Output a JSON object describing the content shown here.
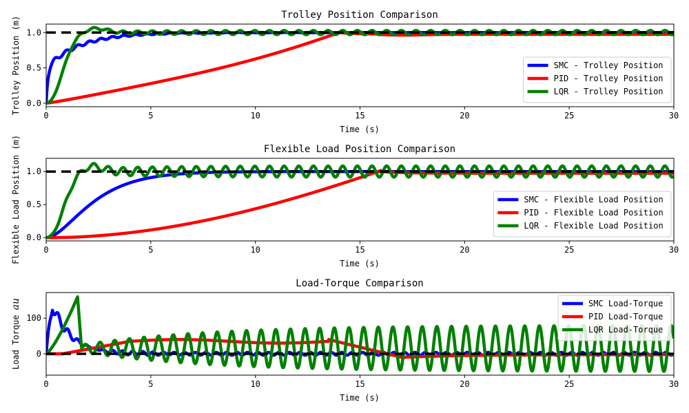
{
  "chart_data": [
    {
      "type": "line",
      "title": "Trolley Position Comparison",
      "xlabel": "Time (s)",
      "ylabel": "Trolley Position (m)",
      "xlim": [
        0,
        30
      ],
      "ylim": [
        -0.05,
        1.12
      ],
      "xticks": [
        0,
        5,
        10,
        15,
        20,
        25,
        30
      ],
      "xtick_labels": [
        "0",
        "5",
        "10",
        "15",
        "20",
        "25",
        "30"
      ],
      "yticks": [
        0.0,
        0.5,
        1.0
      ],
      "ytick_labels": [
        "0.0",
        "0.5",
        "1.0"
      ],
      "legend_position": "lower-right",
      "reference": {
        "name": "Reference",
        "value": 1.0,
        "color": "#000000",
        "style": "dashed"
      },
      "series": [
        {
          "name": "SMC - Trolley Position",
          "color": "#0000ff",
          "model": {
            "kind": "smc_trolley"
          }
        },
        {
          "name": "PID - Trolley Position",
          "color": "#ff0000",
          "model": {
            "kind": "pid_trolley"
          }
        },
        {
          "name": "LQR - Trolley Position",
          "color": "#008000",
          "model": {
            "kind": "lqr_trolley"
          }
        }
      ]
    },
    {
      "type": "line",
      "title": "Flexible Load Position Comparison",
      "xlabel": "Time (s)",
      "ylabel": "Flexible Load Position (m)",
      "xlim": [
        0,
        30
      ],
      "ylim": [
        -0.05,
        1.2
      ],
      "xticks": [
        0,
        5,
        10,
        15,
        20,
        25,
        30
      ],
      "xtick_labels": [
        "0",
        "5",
        "10",
        "15",
        "20",
        "25",
        "30"
      ],
      "yticks": [
        0.0,
        0.5,
        1.0
      ],
      "ytick_labels": [
        "0.0",
        "0.5",
        "1.0"
      ],
      "legend_position": "lower-right",
      "reference": {
        "name": "Reference",
        "value": 1.0,
        "color": "#000000",
        "style": "dashed"
      },
      "series": [
        {
          "name": "SMC - Flexible Load Position",
          "color": "#0000ff",
          "model": {
            "kind": "smc_load"
          }
        },
        {
          "name": "PID - Flexible Load Position",
          "color": "#ff0000",
          "model": {
            "kind": "pid_load"
          }
        },
        {
          "name": "LQR - Flexible Load Position",
          "color": "#008000",
          "model": {
            "kind": "lqr_load"
          }
        }
      ]
    },
    {
      "type": "line",
      "title": "Load-Torque Comparison",
      "xlabel": "Time (s)",
      "ylabel": "Load Torque ",
      "ylabel_math": "au",
      "xlim": [
        0,
        30
      ],
      "ylim": [
        -60,
        172
      ],
      "xticks": [
        0,
        5,
        10,
        15,
        20,
        25,
        30
      ],
      "xtick_labels": [
        "0",
        "5",
        "10",
        "15",
        "20",
        "25",
        "30"
      ],
      "yticks": [
        0,
        100
      ],
      "ytick_labels": [
        "0",
        "100"
      ],
      "legend_position": "upper-right",
      "reference": {
        "name": "Reference",
        "value": 0,
        "color": "#000000",
        "style": "dashed"
      },
      "series": [
        {
          "name": "SMC Load-Torque",
          "color": "#0000ff",
          "model": {
            "kind": "smc_torque"
          }
        },
        {
          "name": "PID Load-Torque",
          "color": "#ff0000",
          "model": {
            "kind": "pid_torque"
          }
        },
        {
          "name": "LQR Load-Torque",
          "color": "#008000",
          "model": {
            "kind": "lqr_torque"
          }
        }
      ]
    }
  ]
}
